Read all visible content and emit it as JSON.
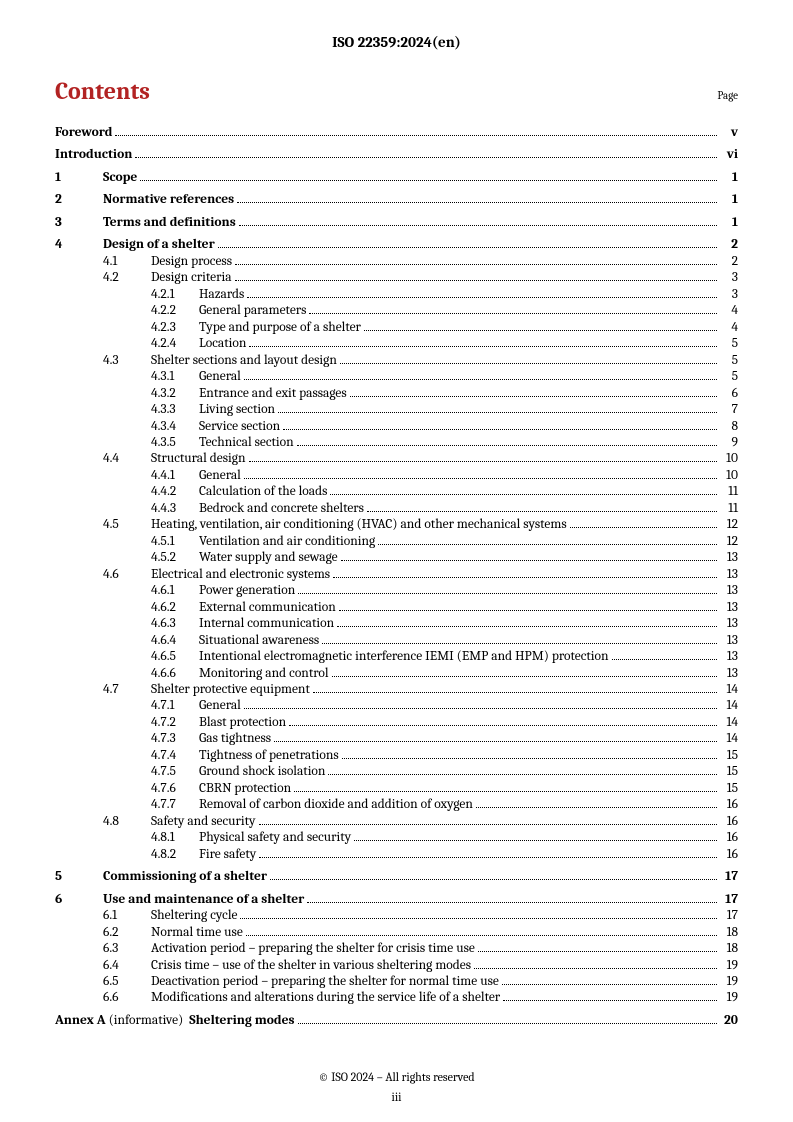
{
  "header": "ISO 22359:2024(en)",
  "contentsTitle": "Contents",
  "pageLabel": "Page",
  "footer": "© ISO 2024 – All rights reserved",
  "folio": "iii",
  "annex": {
    "label": "Annex A",
    "qual": "(informative)",
    "title": "Sheltering modes",
    "page": "20"
  },
  "toc": [
    {
      "l": 0,
      "n": "",
      "t": "Foreword",
      "p": "v"
    },
    {
      "l": 0,
      "n": "",
      "t": "Introduction",
      "p": "vi"
    },
    {
      "l": 1,
      "n": "1",
      "t": "Scope",
      "p": "1"
    },
    {
      "l": 1,
      "n": "2",
      "t": "Normative references",
      "p": "1"
    },
    {
      "l": 1,
      "n": "3",
      "t": "Terms and definitions",
      "p": "1"
    },
    {
      "l": 1,
      "n": "4",
      "t": "Design of a shelter",
      "p": "2"
    },
    {
      "l": 2,
      "n": "4.1",
      "t": "Design process",
      "p": "2"
    },
    {
      "l": 2,
      "n": "4.2",
      "t": "Design criteria",
      "p": "3"
    },
    {
      "l": 3,
      "n": "4.2.1",
      "t": "Hazards",
      "p": "3"
    },
    {
      "l": 3,
      "n": "4.2.2",
      "t": "General parameters",
      "p": "4"
    },
    {
      "l": 3,
      "n": "4.2.3",
      "t": "Type and purpose of a shelter",
      "p": "4"
    },
    {
      "l": 3,
      "n": "4.2.4",
      "t": "Location",
      "p": "5"
    },
    {
      "l": 2,
      "n": "4.3",
      "t": "Shelter sections and layout design",
      "p": "5"
    },
    {
      "l": 3,
      "n": "4.3.1",
      "t": "General",
      "p": "5"
    },
    {
      "l": 3,
      "n": "4.3.2",
      "t": "Entrance and exit passages",
      "p": "6"
    },
    {
      "l": 3,
      "n": "4.3.3",
      "t": "Living section",
      "p": "7"
    },
    {
      "l": 3,
      "n": "4.3.4",
      "t": "Service section",
      "p": "8"
    },
    {
      "l": 3,
      "n": "4.3.5",
      "t": "Technical section",
      "p": "9"
    },
    {
      "l": 2,
      "n": "4.4",
      "t": "Structural design",
      "p": "10"
    },
    {
      "l": 3,
      "n": "4.4.1",
      "t": "General",
      "p": "10"
    },
    {
      "l": 3,
      "n": "4.4.2",
      "t": "Calculation of the loads",
      "p": "11"
    },
    {
      "l": 3,
      "n": "4.4.3",
      "t": "Bedrock and concrete shelters",
      "p": "11"
    },
    {
      "l": 2,
      "n": "4.5",
      "t": "Heating, ventilation, air conditioning (HVAC) and other mechanical systems",
      "p": "12"
    },
    {
      "l": 3,
      "n": "4.5.1",
      "t": "Ventilation and air conditioning",
      "p": "12"
    },
    {
      "l": 3,
      "n": "4.5.2",
      "t": "Water supply and sewage",
      "p": "13"
    },
    {
      "l": 2,
      "n": "4.6",
      "t": "Electrical and electronic systems",
      "p": "13"
    },
    {
      "l": 3,
      "n": "4.6.1",
      "t": "Power generation",
      "p": "13"
    },
    {
      "l": 3,
      "n": "4.6.2",
      "t": "External communication",
      "p": "13"
    },
    {
      "l": 3,
      "n": "4.6.3",
      "t": "Internal communication",
      "p": "13"
    },
    {
      "l": 3,
      "n": "4.6.4",
      "t": "Situational awareness",
      "p": "13"
    },
    {
      "l": 3,
      "n": "4.6.5",
      "t": "Intentional electromagnetic interference IEMI (EMP and HPM) protection",
      "p": "13"
    },
    {
      "l": 3,
      "n": "4.6.6",
      "t": "Monitoring and control",
      "p": "13"
    },
    {
      "l": 2,
      "n": "4.7",
      "t": "Shelter protective equipment",
      "p": "14"
    },
    {
      "l": 3,
      "n": "4.7.1",
      "t": "General",
      "p": "14"
    },
    {
      "l": 3,
      "n": "4.7.2",
      "t": "Blast protection",
      "p": "14"
    },
    {
      "l": 3,
      "n": "4.7.3",
      "t": "Gas tightness",
      "p": "14"
    },
    {
      "l": 3,
      "n": "4.7.4",
      "t": "Tightness of penetrations",
      "p": "15"
    },
    {
      "l": 3,
      "n": "4.7.5",
      "t": "Ground shock isolation",
      "p": "15"
    },
    {
      "l": 3,
      "n": "4.7.6",
      "t": "CBRN protection",
      "p": "15"
    },
    {
      "l": 3,
      "n": "4.7.7",
      "t": "Removal of carbon dioxide and addition of oxygen",
      "p": "16"
    },
    {
      "l": 2,
      "n": "4.8",
      "t": "Safety and security",
      "p": "16"
    },
    {
      "l": 3,
      "n": "4.8.1",
      "t": "Physical safety and security",
      "p": "16"
    },
    {
      "l": 3,
      "n": "4.8.2",
      "t": "Fire safety",
      "p": "16"
    },
    {
      "l": 1,
      "n": "5",
      "t": "Commissioning of a shelter",
      "p": "17"
    },
    {
      "l": 1,
      "n": "6",
      "t": "Use and maintenance of a shelter",
      "p": "17"
    },
    {
      "l": 2,
      "n": "6.1",
      "t": "Sheltering cycle",
      "p": "17"
    },
    {
      "l": 2,
      "n": "6.2",
      "t": "Normal time use",
      "p": "18"
    },
    {
      "l": 2,
      "n": "6.3",
      "t": "Activation period – preparing the shelter for crisis time use",
      "p": "18"
    },
    {
      "l": 2,
      "n": "6.4",
      "t": "Crisis time – use of the shelter in various sheltering modes",
      "p": "19"
    },
    {
      "l": 2,
      "n": "6.5",
      "t": "Deactivation period – preparing the shelter for normal time use",
      "p": "19"
    },
    {
      "l": 2,
      "n": "6.6",
      "t": "Modifications and alterations during the service life of a shelter",
      "p": "19"
    }
  ]
}
